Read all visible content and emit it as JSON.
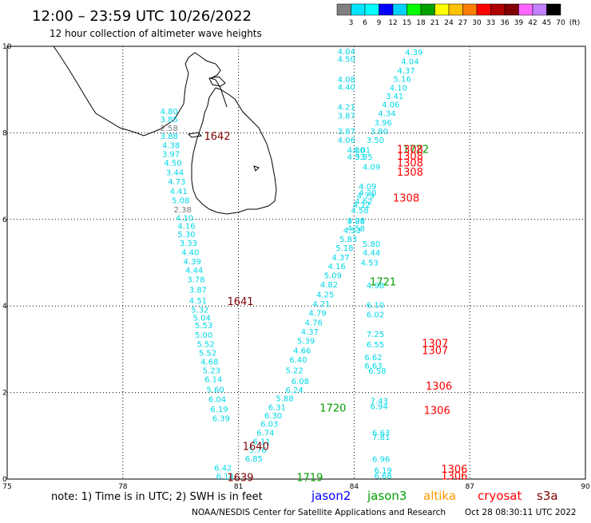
{
  "header": {
    "title": "12:00 – 23:59 UTC 10/26/2022",
    "subtitle": "12 hour collection of altimeter wave heights"
  },
  "legend": {
    "labels": [
      "3",
      "6",
      "9",
      "12",
      "15",
      "18",
      "21",
      "24",
      "27",
      "30",
      "33",
      "36",
      "39",
      "42",
      "45",
      "70",
      "(ft)"
    ],
    "colors": [
      "#808080",
      "#00e5ff",
      "#00ffff",
      "#0000ff",
      "#00d0ff",
      "#00ff00",
      "#00a000",
      "#ffff00",
      "#ffc000",
      "#ff7f00",
      "#ff0000",
      "#b00000",
      "#800000",
      "#ff66ff",
      "#c080ff",
      "#000000"
    ]
  },
  "axes": {
    "x_ticks": [
      "75",
      "78",
      "81",
      "84",
      "87",
      "90"
    ],
    "y_ticks": [
      "0",
      "2",
      "4",
      "6",
      "8",
      "10"
    ],
    "xlim": [
      75,
      90
    ],
    "ylim": [
      0,
      10
    ]
  },
  "footer": {
    "note": "note:  1) Time is in UTC;  2) SWH is in feet",
    "sats": [
      {
        "name": "jason2",
        "color": "#0000ff"
      },
      {
        "name": "jason3",
        "color": "#00a000"
      },
      {
        "name": "altika",
        "color": "#ff9900"
      },
      {
        "name": "cryosat",
        "color": "#ff0000"
      },
      {
        "name": "s3a",
        "color": "#800000"
      }
    ],
    "credit": "NOAA/NESDIS Center for Satellite Applications and Research",
    "timestamp": "Oct 28 08:30:11 UTC 2022"
  },
  "chart_data": {
    "type": "scatter",
    "tracks": [
      {
        "name": "track-west",
        "x": [
          79.2,
          79.2,
          79.2,
          79.2,
          79.25,
          79.25,
          79.3,
          79.35,
          79.4,
          79.45,
          79.5,
          79.55,
          79.6,
          79.65,
          79.65,
          79.7,
          79.75,
          79.8,
          79.85,
          79.9,
          79.95,
          79.95,
          80.0,
          80.05,
          80.1,
          80.1,
          80.15,
          80.2,
          80.25,
          80.3,
          80.35,
          80.4,
          80.45,
          80.5,
          80.55
        ],
        "y": [
          8.51,
          8.32,
          8.12,
          7.93,
          7.72,
          7.52,
          7.32,
          7.09,
          6.88,
          6.66,
          6.45,
          6.24,
          6.04,
          5.86,
          5.66,
          5.46,
          5.25,
          5.04,
          4.83,
          4.62,
          4.38,
          4.13,
          3.92,
          3.74,
          3.56,
          3.34,
          3.13,
          2.92,
          2.72,
          2.52,
          2.32,
          2.08,
          1.85,
          1.62,
          1.41
        ],
        "values": [
          "4.80",
          "3.85",
          "2.58",
          "3.88",
          "4.38",
          "3.97",
          "4.50",
          "3.44",
          "4.73",
          "4.41",
          "5.08",
          "2.38",
          "4.10",
          "4.16",
          "5.30",
          "3.33",
          "4.40",
          "4.39",
          "4.44",
          "3.78",
          "3.87",
          "4.51",
          "5.32",
          "5.04",
          "5.53",
          "5.00",
          "5.52",
          "5.52",
          "4.68",
          "5.23",
          "6.14",
          "5.60",
          "6.04",
          "6.19",
          "6.39"
        ],
        "gray": [
          2,
          11
        ]
      },
      {
        "name": "track-south",
        "x": [
          80.6,
          80.65,
          82.6,
          82.45,
          82.2,
          82.0,
          81.9,
          81.8,
          81.7,
          81.6,
          81.5,
          81.4
        ],
        "y": [
          0.27,
          0.07,
          2.27,
          2.07,
          1.87,
          1.67,
          1.48,
          1.28,
          1.08,
          0.88,
          0.68,
          0.48
        ],
        "values": [
          "6.42",
          "6.14",
          "6.08",
          "6.24",
          "5.88",
          "6.31",
          "6.30",
          "6.03",
          "6.74",
          "6.11",
          "5.76",
          "6.85"
        ]
      },
      {
        "name": "track-east-diag",
        "x": [
          85.55,
          85.45,
          85.35,
          85.25,
          85.15,
          85.05,
          84.95,
          84.85,
          84.75,
          84.65,
          84.55,
          84.45,
          84.35,
          84.25,
          84.15,
          84.05,
          83.95,
          83.85,
          83.75,
          83.65,
          83.55,
          83.45,
          83.35,
          83.25,
          83.15,
          83.05,
          82.95,
          82.85,
          82.75,
          82.65,
          82.55,
          82.45
        ],
        "y": [
          9.87,
          9.66,
          9.45,
          9.25,
          9.05,
          8.86,
          8.66,
          8.46,
          8.25,
          8.04,
          7.84,
          7.22,
          6.62,
          6.43,
          6.22,
          5.98,
          5.76,
          5.55,
          5.35,
          5.13,
          4.93,
          4.71,
          4.5,
          4.27,
          4.06,
          3.85,
          3.63,
          3.41,
          3.2,
          2.98,
          2.77,
          2.52
        ],
        "values": [
          "4.39",
          "4.04",
          "4.37",
          "5.16",
          "4.10",
          "3.41",
          "4.06",
          "4.34",
          "3.96",
          "3.80",
          "3.50",
          "4.09",
          "4.20",
          "4.62",
          "4.58",
          "3.96",
          "4.53",
          "5.83",
          "5.18",
          "4.37",
          "4.16",
          "5.09",
          "4.82",
          "4.25",
          "4.21",
          "4.79",
          "4.76",
          "4.37",
          "5.39",
          "4.66",
          "6.40",
          "5.22"
        ]
      },
      {
        "name": "track-east-vertical",
        "x": [
          83.8,
          83.8,
          83.8,
          83.8,
          83.8,
          83.8,
          83.8,
          83.8,
          84.05,
          84.05,
          84.2,
          84.25,
          84.35,
          84.3,
          84.2,
          84.05,
          84.05,
          84.45,
          84.45,
          84.4,
          84.55,
          84.55,
          84.55,
          84.55,
          84.55,
          84.5,
          84.5,
          84.6,
          84.65,
          84.65,
          84.7,
          84.7,
          84.7,
          84.75,
          84.75
        ],
        "y": [
          9.89,
          9.71,
          9.24,
          9.07,
          8.61,
          8.4,
          8.04,
          7.84,
          7.61,
          7.45,
          7.61,
          7.45,
          6.77,
          6.56,
          6.35,
          5.98,
          5.8,
          5.44,
          5.24,
          5.01,
          4.48,
          4.03,
          3.81,
          3.36,
          3.12,
          2.82,
          2.63,
          2.51,
          1.82,
          1.69,
          1.08,
          0.98,
          0.47,
          0.21,
          0.08
        ],
        "values": [
          "4.04",
          "4.50",
          "4.08",
          "4.40",
          "4.21",
          "3.87",
          "3.87",
          "4.06",
          "4.30",
          "4.53",
          "4.01",
          "3.35",
          "4.09",
          "4.79",
          "4.12",
          "4.22",
          "4.58",
          "5.80",
          "4.44",
          "4.53",
          "4.98",
          "6.10",
          "6.02",
          "7.25",
          "6.55",
          "6.62",
          "6.63",
          "6.58",
          "7.43",
          "6.94",
          "6.63",
          "7.81",
          "6.96",
          "6.19",
          "6.68"
        ]
      }
    ],
    "time_labels": [
      {
        "text": "1642",
        "x": 80.45,
        "y": 7.93,
        "color": "#800000"
      },
      {
        "text": "1641",
        "x": 81.05,
        "y": 4.11,
        "color": "#800000"
      },
      {
        "text": "1640",
        "x": 81.45,
        "y": 0.77,
        "color": "#800000"
      },
      {
        "text": "1639",
        "x": 81.05,
        "y": 0.05,
        "color": "#800000"
      },
      {
        "text": "1719",
        "x": 82.85,
        "y": 0.05,
        "color": "#00a000"
      },
      {
        "text": "1720",
        "x": 83.45,
        "y": 1.65,
        "color": "#00a000"
      },
      {
        "text": "1721",
        "x": 84.75,
        "y": 4.57,
        "color": "#00a000"
      },
      {
        "text": "1722",
        "x": 85.6,
        "y": 7.63,
        "color": "#00a000"
      },
      {
        "text": "1308",
        "x": 85.45,
        "y": 7.63,
        "color": "#ff0000"
      },
      {
        "text": "1308",
        "x": 85.45,
        "y": 7.47,
        "color": "#ff0000"
      },
      {
        "text": "1308",
        "x": 85.45,
        "y": 7.32,
        "color": "#ff0000"
      },
      {
        "text": "1308",
        "x": 85.45,
        "y": 7.1,
        "color": "#ff0000"
      },
      {
        "text": "1308",
        "x": 85.35,
        "y": 6.5,
        "color": "#ff0000"
      },
      {
        "text": "1307",
        "x": 86.1,
        "y": 3.15,
        "color": "#ff0000"
      },
      {
        "text": "1307",
        "x": 86.1,
        "y": 2.98,
        "color": "#ff0000"
      },
      {
        "text": "1306",
        "x": 86.2,
        "y": 2.16,
        "color": "#ff0000"
      },
      {
        "text": "1306",
        "x": 86.15,
        "y": 1.6,
        "color": "#ff0000"
      },
      {
        "text": "1306",
        "x": 86.6,
        "y": 0.24,
        "color": "#ff0000"
      },
      {
        "text": "1306",
        "x": 86.6,
        "y": 0.08,
        "color": "#ff0000"
      }
    ]
  }
}
